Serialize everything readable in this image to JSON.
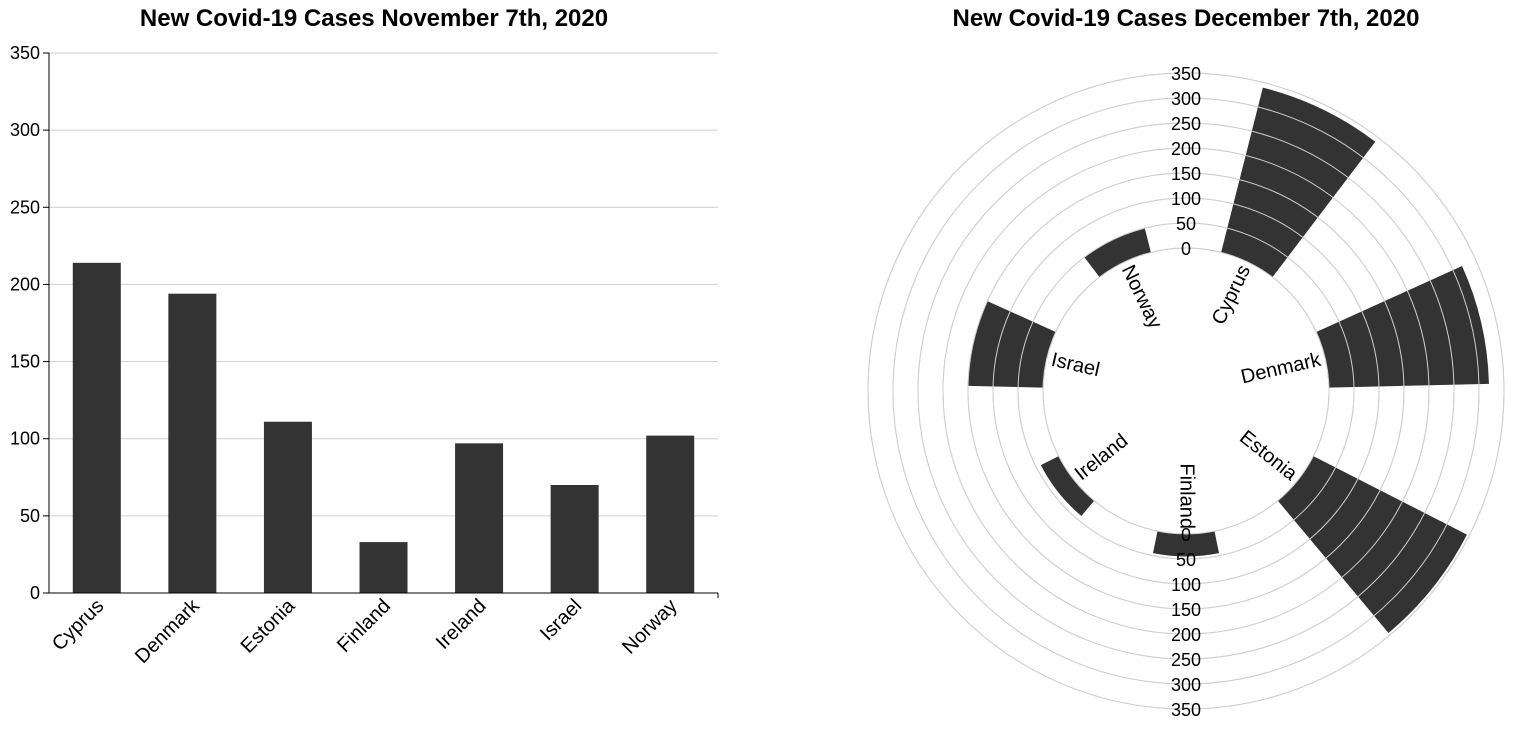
{
  "chart_data": [
    {
      "type": "bar",
      "title": "New Covid-19 Cases November 7th, 2020",
      "categories": [
        "Cyprus",
        "Denmark",
        "Estonia",
        "Finland",
        "Ireland",
        "Israel",
        "Norway"
      ],
      "values": [
        214,
        194,
        111,
        33,
        97,
        70,
        102
      ],
      "ylim": [
        0,
        350
      ],
      "yticks": [
        "0",
        "50",
        "100",
        "150",
        "200",
        "250",
        "300",
        "350"
      ],
      "grid": true,
      "color": "#333333"
    },
    {
      "type": "bar",
      "subtype": "radial",
      "title": "New Covid-19 Cases December 7th, 2020",
      "categories": [
        "Cyprus",
        "Denmark",
        "Estonia",
        "Finland",
        "Ireland",
        "Israel",
        "Norway"
      ],
      "values": [
        340,
        320,
        345,
        45,
        40,
        150,
        50
      ],
      "ylim": [
        0,
        350
      ],
      "rticks": [
        "0",
        "50",
        "100",
        "150",
        "200",
        "250",
        "300",
        "350"
      ],
      "grid": true,
      "color": "#333333"
    }
  ]
}
